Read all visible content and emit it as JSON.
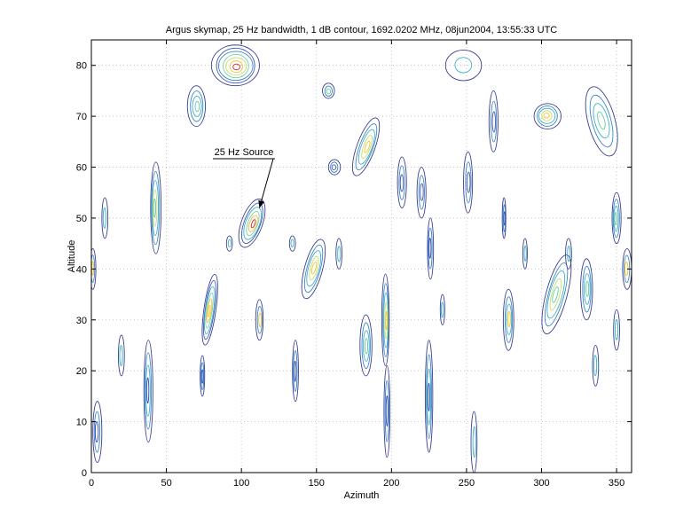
{
  "chart_data": {
    "type": "contour",
    "title": "Argus skymap, 25 Hz bandwidth, 1 dB contour, 1692.0202 MHz, 08jun2004, 13:55:33 UTC",
    "xlabel": "Azimuth",
    "ylabel": "Altitude",
    "xlim": [
      0,
      360
    ],
    "ylim": [
      0,
      85
    ],
    "xticks": [
      0,
      50,
      100,
      150,
      200,
      250,
      300,
      350
    ],
    "yticks": [
      0,
      10,
      20,
      30,
      40,
      50,
      60,
      70,
      80
    ],
    "grid": true,
    "annotation": {
      "text": "25 Hz Source",
      "target": [
        112,
        52
      ]
    },
    "blobs": [
      {
        "az": 107,
        "alt": 49,
        "rx": 7,
        "ry": 5,
        "rot": 20,
        "levels": 6,
        "peak": "#d62828"
      },
      {
        "az": 96,
        "alt": 80,
        "rx": 16,
        "ry": 4,
        "rot": 0,
        "levels": 7,
        "peak": "#d62828"
      },
      {
        "az": 79,
        "alt": 32,
        "rx": 4,
        "ry": 7,
        "rot": 8,
        "levels": 6,
        "peak": "#f4c430"
      },
      {
        "az": 43,
        "alt": 52,
        "rx": 3.5,
        "ry": 9,
        "rot": 0,
        "levels": 5,
        "peak": "#66cc99"
      },
      {
        "az": 38,
        "alt": 16,
        "rx": 3,
        "ry": 10,
        "rot": 0,
        "levels": 4,
        "peak": "#2b4fbf"
      },
      {
        "az": 148,
        "alt": 40,
        "rx": 6,
        "ry": 6,
        "rot": 15,
        "levels": 5,
        "peak": "#f4c430"
      },
      {
        "az": 183,
        "alt": 64,
        "rx": 6,
        "ry": 6,
        "rot": 20,
        "levels": 5,
        "peak": "#f4c430"
      },
      {
        "az": 196,
        "alt": 30,
        "rx": 2.5,
        "ry": 9,
        "rot": 0,
        "levels": 5,
        "peak": "#f4c430"
      },
      {
        "az": 225,
        "alt": 15,
        "rx": 2.5,
        "ry": 11,
        "rot": 0,
        "levels": 4,
        "peak": "#2b4fbf"
      },
      {
        "az": 310,
        "alt": 35,
        "rx": 7,
        "ry": 8,
        "rot": 15,
        "levels": 5,
        "peak": "#66cc99"
      },
      {
        "az": 304,
        "alt": 70,
        "rx": 9,
        "ry": 2.5,
        "rot": 0,
        "levels": 5,
        "peak": "#f4c430"
      },
      {
        "az": 340,
        "alt": 69,
        "rx": 9,
        "ry": 7,
        "rot": -15,
        "levels": 4,
        "peak": "#66cc99"
      },
      {
        "az": 330,
        "alt": 36,
        "rx": 4,
        "ry": 6,
        "rot": 0,
        "levels": 4,
        "peak": "#66cc99"
      },
      {
        "az": 70,
        "alt": 72,
        "rx": 6,
        "ry": 4,
        "rot": 0,
        "levels": 4,
        "peak": "#66cc99"
      },
      {
        "az": 158,
        "alt": 75,
        "rx": 4,
        "ry": 1.5,
        "rot": 0,
        "levels": 3,
        "peak": "#66cc99"
      },
      {
        "az": 350,
        "alt": 50,
        "rx": 3,
        "ry": 5,
        "rot": 0,
        "levels": 4,
        "peak": "#66cc99"
      },
      {
        "az": 357,
        "alt": 40,
        "rx": 3,
        "ry": 4,
        "rot": 0,
        "levels": 3,
        "peak": "#f4c430"
      },
      {
        "az": 1,
        "alt": 40,
        "rx": 2,
        "ry": 4,
        "rot": 0,
        "levels": 3,
        "peak": "#f4c430"
      },
      {
        "az": 278,
        "alt": 30,
        "rx": 3.5,
        "ry": 6,
        "rot": 0,
        "levels": 4,
        "peak": "#f4c430"
      },
      {
        "az": 112,
        "alt": 30,
        "rx": 2.5,
        "ry": 4,
        "rot": 0,
        "levels": 3,
        "peak": "#f4c430"
      },
      {
        "az": 183,
        "alt": 25,
        "rx": 4,
        "ry": 6,
        "rot": 0,
        "levels": 4,
        "peak": "#66cc99"
      },
      {
        "az": 136,
        "alt": 20,
        "rx": 2,
        "ry": 6,
        "rot": 0,
        "levels": 3,
        "peak": "#2b4fbf"
      },
      {
        "az": 4,
        "alt": 8,
        "rx": 3,
        "ry": 6,
        "rot": 0,
        "levels": 3,
        "peak": "#2b4fbf"
      },
      {
        "az": 248,
        "alt": 80,
        "rx": 12,
        "ry": 3,
        "rot": 0,
        "levels": 2,
        "peak": "#4a5aa8"
      },
      {
        "az": 220,
        "alt": 55,
        "rx": 3,
        "ry": 5,
        "rot": 0,
        "levels": 3,
        "peak": "#4a5aa8"
      },
      {
        "az": 251,
        "alt": 57,
        "rx": 3,
        "ry": 6,
        "rot": 0,
        "levels": 3,
        "peak": "#4a5aa8"
      },
      {
        "az": 268,
        "alt": 69,
        "rx": 3,
        "ry": 6,
        "rot": 0,
        "levels": 3,
        "peak": "#4a5aa8"
      },
      {
        "az": 207,
        "alt": 57,
        "rx": 3,
        "ry": 5,
        "rot": 0,
        "levels": 3,
        "peak": "#4a5aa8"
      },
      {
        "az": 162,
        "alt": 60,
        "rx": 4,
        "ry": 1.5,
        "rot": 0,
        "levels": 3,
        "peak": "#4a5aa8"
      },
      {
        "az": 226,
        "alt": 44,
        "rx": 2,
        "ry": 6,
        "rot": 0,
        "levels": 3,
        "peak": "#2b4fbf"
      },
      {
        "az": 197,
        "alt": 12,
        "rx": 2,
        "ry": 9,
        "rot": 0,
        "levels": 3,
        "peak": "#2b4fbf"
      },
      {
        "az": 255,
        "alt": 6,
        "rx": 2,
        "ry": 6,
        "rot": 0,
        "levels": 2,
        "peak": "#2b4fbf"
      },
      {
        "az": 275,
        "alt": 50,
        "rx": 1.2,
        "ry": 4,
        "rot": 0,
        "levels": 3,
        "peak": "#2b4fbf"
      },
      {
        "az": 74,
        "alt": 19,
        "rx": 1.5,
        "ry": 4,
        "rot": 0,
        "levels": 3,
        "peak": "#2b4fbf"
      },
      {
        "az": 20,
        "alt": 23,
        "rx": 2,
        "ry": 4,
        "rot": 0,
        "levels": 2,
        "peak": "#4a5aa8"
      },
      {
        "az": 336,
        "alt": 21,
        "rx": 2,
        "ry": 4,
        "rot": 0,
        "levels": 2,
        "peak": "#4a5aa8"
      },
      {
        "az": 350,
        "alt": 28,
        "rx": 2,
        "ry": 4,
        "rot": 0,
        "levels": 2,
        "peak": "#4a5aa8"
      },
      {
        "az": 289,
        "alt": 43,
        "rx": 1.5,
        "ry": 3,
        "rot": 0,
        "levels": 2,
        "peak": "#4a5aa8"
      },
      {
        "az": 318,
        "alt": 43,
        "rx": 2,
        "ry": 3,
        "rot": 0,
        "levels": 2,
        "peak": "#4a5aa8"
      },
      {
        "az": 165,
        "alt": 43,
        "rx": 2,
        "ry": 3,
        "rot": 0,
        "levels": 2,
        "peak": "#4a5aa8"
      },
      {
        "az": 234,
        "alt": 32,
        "rx": 1.5,
        "ry": 3,
        "rot": 0,
        "levels": 2,
        "peak": "#2b4fbf"
      },
      {
        "az": 9,
        "alt": 50,
        "rx": 2,
        "ry": 4,
        "rot": 0,
        "levels": 2,
        "peak": "#4a5aa8"
      },
      {
        "az": 134,
        "alt": 45,
        "rx": 2,
        "ry": 1.5,
        "rot": 0,
        "levels": 2,
        "peak": "#4a5aa8"
      },
      {
        "az": 92,
        "alt": 45,
        "rx": 2,
        "ry": 1.5,
        "rot": 0,
        "levels": 2,
        "peak": "#4a5aa8"
      }
    ],
    "contour_colors": [
      "#3a3f91",
      "#3f59b8",
      "#3d86c6",
      "#3fb0c6",
      "#79cfa8",
      "#c9dc6c",
      "#f2c33c",
      "#e4552a"
    ]
  }
}
